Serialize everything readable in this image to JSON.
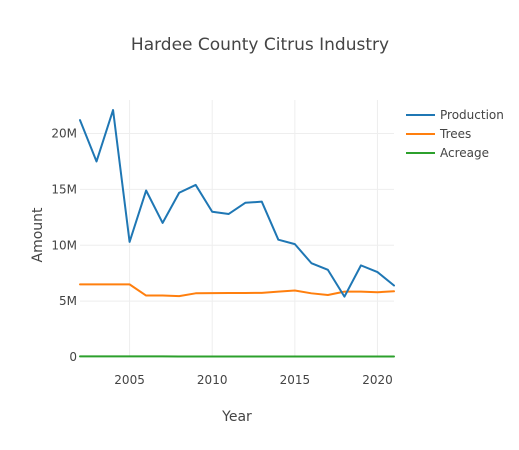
{
  "chart_data": {
    "type": "line",
    "title": "Hardee County Citrus Industry",
    "xlabel": "Year",
    "ylabel": "Amount",
    "xlim": [
      2002,
      2021
    ],
    "ylim": [
      0,
      23000000
    ],
    "x_ticks": [
      2005,
      2010,
      2015,
      2020
    ],
    "y_ticks": [
      0,
      5000000,
      10000000,
      15000000,
      20000000
    ],
    "y_tick_labels": [
      "0",
      "5M",
      "10M",
      "15M",
      "20M"
    ],
    "grid": true,
    "legend_position": "top-right",
    "x": [
      2002,
      2003,
      2004,
      2005,
      2006,
      2007,
      2008,
      2009,
      2010,
      2011,
      2012,
      2013,
      2014,
      2015,
      2016,
      2017,
      2018,
      2019,
      2020,
      2021
    ],
    "series": [
      {
        "name": "Production",
        "color": "#1f77b4",
        "values": [
          21200000,
          17500000,
          22100000,
          10300000,
          14900000,
          12000000,
          14700000,
          15400000,
          13000000,
          12800000,
          13800000,
          13900000,
          10500000,
          10100000,
          8400000,
          7800000,
          5400000,
          8200000,
          7600000,
          6400000
        ]
      },
      {
        "name": "Trees",
        "color": "#ff7f0e",
        "values": [
          6500000,
          6500000,
          6500000,
          6500000,
          5500000,
          5500000,
          5450000,
          5700000,
          5720000,
          5730000,
          5730000,
          5740000,
          5850000,
          5950000,
          5700000,
          5550000,
          5850000,
          5850000,
          5800000,
          5880000
        ]
      },
      {
        "name": "Acreage",
        "color": "#2ca02c",
        "values": [
          60000,
          59000,
          58000,
          57000,
          54000,
          52000,
          50000,
          49000,
          48000,
          47500,
          47000,
          46500,
          46000,
          45500,
          45000,
          44000,
          43000,
          42000,
          41000,
          40000
        ]
      }
    ]
  }
}
